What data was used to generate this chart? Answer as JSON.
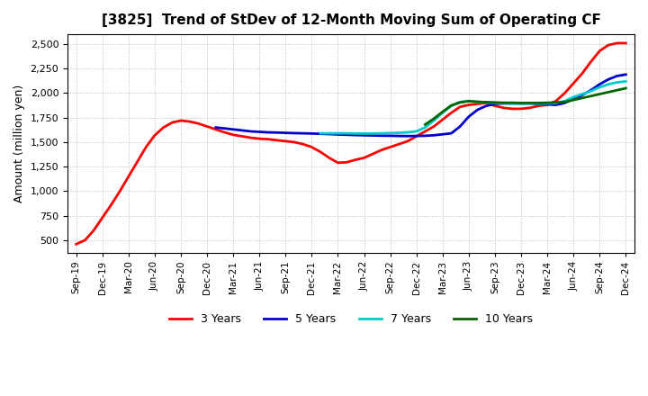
{
  "title": "[3825]  Trend of StDev of 12-Month Moving Sum of Operating CF",
  "ylabel": "Amount (million yen)",
  "ylim": [
    375,
    2600
  ],
  "yticks": [
    500,
    750,
    1000,
    1250,
    1500,
    1750,
    2000,
    2250,
    2500
  ],
  "background_color": "#ffffff",
  "grid_color": "#aaaaaa",
  "series": {
    "3yr": {
      "color": "#ff0000",
      "label": "3 Years",
      "x": [
        0,
        1,
        2,
        3,
        4,
        5,
        6,
        7,
        8,
        9,
        10,
        11,
        12,
        13,
        14,
        15,
        16,
        17,
        18,
        19,
        20,
        21,
        22,
        23,
        24,
        25,
        26,
        27,
        28,
        29,
        30,
        31,
        32,
        33,
        34,
        35,
        36,
        37,
        38,
        39,
        40,
        41,
        42,
        43,
        44,
        45,
        46,
        47,
        48,
        49,
        50,
        51,
        52,
        53,
        54,
        55,
        56,
        57,
        58,
        59,
        60,
        61,
        62,
        63
      ],
      "y": [
        460,
        500,
        600,
        730,
        860,
        1000,
        1150,
        1300,
        1450,
        1570,
        1650,
        1700,
        1720,
        1710,
        1690,
        1660,
        1630,
        1600,
        1575,
        1560,
        1545,
        1535,
        1530,
        1520,
        1510,
        1500,
        1480,
        1450,
        1400,
        1340,
        1290,
        1295,
        1320,
        1340,
        1380,
        1420,
        1450,
        1480,
        1510,
        1560,
        1610,
        1660,
        1730,
        1800,
        1860,
        1880,
        1890,
        1900,
        1870,
        1850,
        1840,
        1840,
        1850,
        1870,
        1880,
        1920,
        2000,
        2100,
        2200,
        2320,
        2430,
        2490,
        2510,
        2510
      ]
    },
    "5yr": {
      "color": "#0000cc",
      "label": "5 Years",
      "x": [
        16,
        17,
        18,
        19,
        20,
        21,
        22,
        23,
        24,
        25,
        26,
        27,
        28,
        29,
        30,
        31,
        32,
        33,
        34,
        35,
        36,
        37,
        38,
        39,
        40,
        41,
        42,
        43,
        44,
        45,
        46,
        47,
        48,
        49,
        50,
        51,
        52,
        53,
        54,
        55,
        56,
        57,
        58,
        59,
        60,
        61,
        62,
        63
      ],
      "y": [
        1650,
        1640,
        1630,
        1620,
        1610,
        1605,
        1600,
        1598,
        1595,
        1592,
        1590,
        1588,
        1585,
        1582,
        1578,
        1575,
        1572,
        1570,
        1568,
        1566,
        1565,
        1563,
        1562,
        1563,
        1565,
        1570,
        1580,
        1590,
        1660,
        1760,
        1830,
        1870,
        1890,
        1895,
        1895,
        1895,
        1895,
        1890,
        1885,
        1880,
        1900,
        1940,
        1980,
        2030,
        2090,
        2140,
        2175,
        2190
      ]
    },
    "7yr": {
      "color": "#00cccc",
      "label": "7 Years",
      "x": [
        28,
        29,
        30,
        31,
        32,
        33,
        34,
        35,
        36,
        37,
        38,
        39,
        40,
        41,
        42,
        43,
        44,
        45,
        46,
        47,
        48,
        49,
        50,
        51,
        52,
        53,
        54,
        55,
        56,
        57,
        58,
        59,
        60,
        61,
        62,
        63
      ],
      "y": [
        1590,
        1590,
        1590,
        1590,
        1588,
        1588,
        1588,
        1590,
        1593,
        1595,
        1600,
        1610,
        1650,
        1720,
        1800,
        1870,
        1910,
        1920,
        1910,
        1905,
        1900,
        1897,
        1895,
        1893,
        1893,
        1893,
        1895,
        1898,
        1920,
        1960,
        1990,
        2020,
        2060,
        2090,
        2110,
        2120
      ]
    },
    "10yr": {
      "color": "#006600",
      "label": "10 Years",
      "x": [
        40,
        41,
        42,
        43,
        44,
        45,
        46,
        47,
        48,
        49,
        50,
        51,
        52,
        53,
        54,
        55,
        56,
        57,
        58,
        59,
        60,
        61,
        62,
        63
      ],
      "y": [
        1680,
        1740,
        1810,
        1875,
        1905,
        1918,
        1912,
        1908,
        1905,
        1902,
        1902,
        1900,
        1900,
        1900,
        1902,
        1905,
        1910,
        1930,
        1950,
        1970,
        1990,
        2010,
        2030,
        2050
      ]
    }
  },
  "xtick_labels": [
    "Sep-19",
    "Dec-19",
    "Mar-20",
    "Jun-20",
    "Sep-20",
    "Dec-20",
    "Mar-21",
    "Jun-21",
    "Sep-21",
    "Dec-21",
    "Mar-22",
    "Jun-22",
    "Sep-22",
    "Dec-22",
    "Mar-23",
    "Jun-23",
    "Sep-23",
    "Dec-23",
    "Mar-24",
    "Jun-24",
    "Sep-24",
    "Dec-24"
  ],
  "xtick_positions": [
    0,
    3,
    6,
    9,
    12,
    15,
    18,
    21,
    24,
    27,
    30,
    33,
    36,
    39,
    42,
    45,
    48,
    51,
    54,
    57,
    60,
    63
  ]
}
